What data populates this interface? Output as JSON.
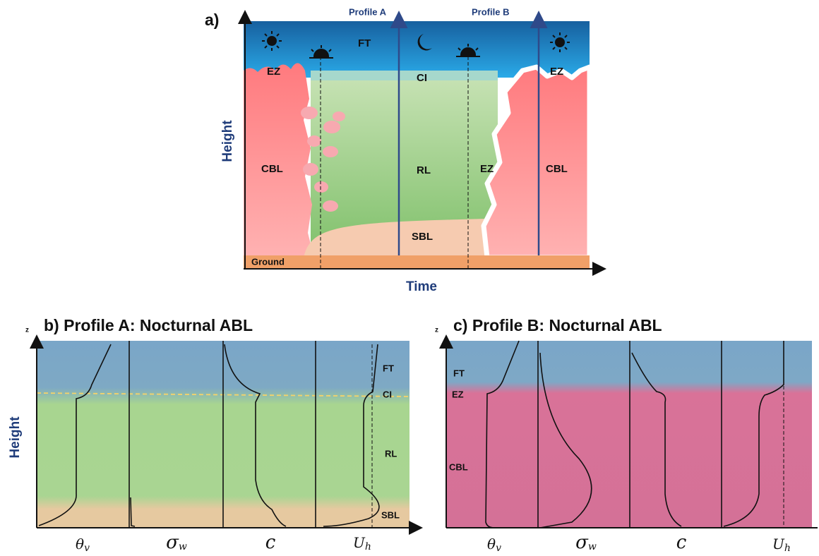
{
  "panel_a": {
    "label": "a)",
    "profile_a": "Profile A",
    "profile_b": "Profile B",
    "regions": {
      "ft": "FT",
      "ez_left": "EZ",
      "ci": "CI",
      "ez_right": "EZ",
      "cbl_left": "CBL",
      "rl": "RL",
      "ez_mid": "EZ",
      "cbl_right": "CBL",
      "sbl": "SBL",
      "ground": "Ground"
    },
    "y_axis": "Height",
    "x_axis": "Time"
  },
  "panel_b": {
    "title": "b) Profile A: Nocturnal ABL",
    "z": "z",
    "y_axis": "Height",
    "layers": [
      "FT",
      "CI",
      "RL",
      "SBL"
    ],
    "variables": [
      {
        "symbol": "θ",
        "subscript": "v"
      },
      {
        "symbol": "σ",
        "subscript": "w"
      },
      {
        "symbol": "c"
      },
      {
        "symbol": "U",
        "subscript": "h"
      }
    ]
  },
  "panel_c": {
    "title": "c) Profile B: Nocturnal ABL",
    "z": "z",
    "layers": [
      "FT",
      "EZ",
      "CBL"
    ],
    "variables": [
      {
        "symbol": "θ",
        "subscript": "v"
      },
      {
        "symbol": "σ",
        "subscript": "w"
      },
      {
        "symbol": "c"
      },
      {
        "symbol": "U",
        "subscript": "h"
      }
    ]
  }
}
